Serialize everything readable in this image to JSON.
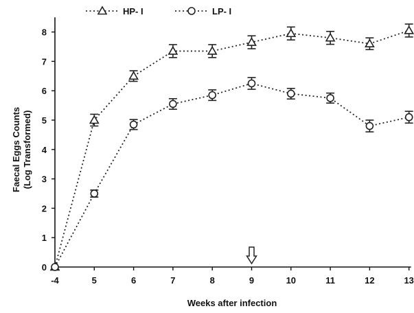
{
  "chart_data": {
    "type": "line",
    "title": "",
    "xlabel": "Weeks after infection",
    "ylabel_lines": [
      "Faecal Eggs Counts",
      "(Log Transformed)"
    ],
    "categories": [
      "-4",
      "5",
      "6",
      "7",
      "8",
      "9",
      "10",
      "11",
      "12",
      "13"
    ],
    "ylim": [
      0,
      8.5
    ],
    "yticks": [
      0,
      1,
      2,
      3,
      4,
      5,
      6,
      7,
      8
    ],
    "grid": false,
    "legend": {
      "placement": "top-left",
      "entries": [
        "HP- I",
        "LP- I"
      ]
    },
    "series": [
      {
        "name": "HP- I",
        "marker": "triangle",
        "color": "#222222",
        "values": [
          0,
          5.0,
          6.5,
          7.35,
          7.35,
          7.65,
          7.95,
          7.8,
          7.6,
          8.05
        ],
        "errors": [
          0.05,
          0.2,
          0.18,
          0.22,
          0.22,
          0.22,
          0.22,
          0.22,
          0.2,
          0.22
        ]
      },
      {
        "name": "LP- I",
        "marker": "circle",
        "color": "#222222",
        "values": [
          0,
          2.5,
          4.85,
          5.55,
          5.85,
          6.25,
          5.9,
          5.75,
          4.8,
          5.1
        ],
        "errors": [
          0.05,
          0.12,
          0.17,
          0.18,
          0.18,
          0.2,
          0.18,
          0.17,
          0.2,
          0.2
        ]
      }
    ],
    "annotation": {
      "type": "arrow-down",
      "at_category": "9",
      "color": "#222222"
    }
  }
}
